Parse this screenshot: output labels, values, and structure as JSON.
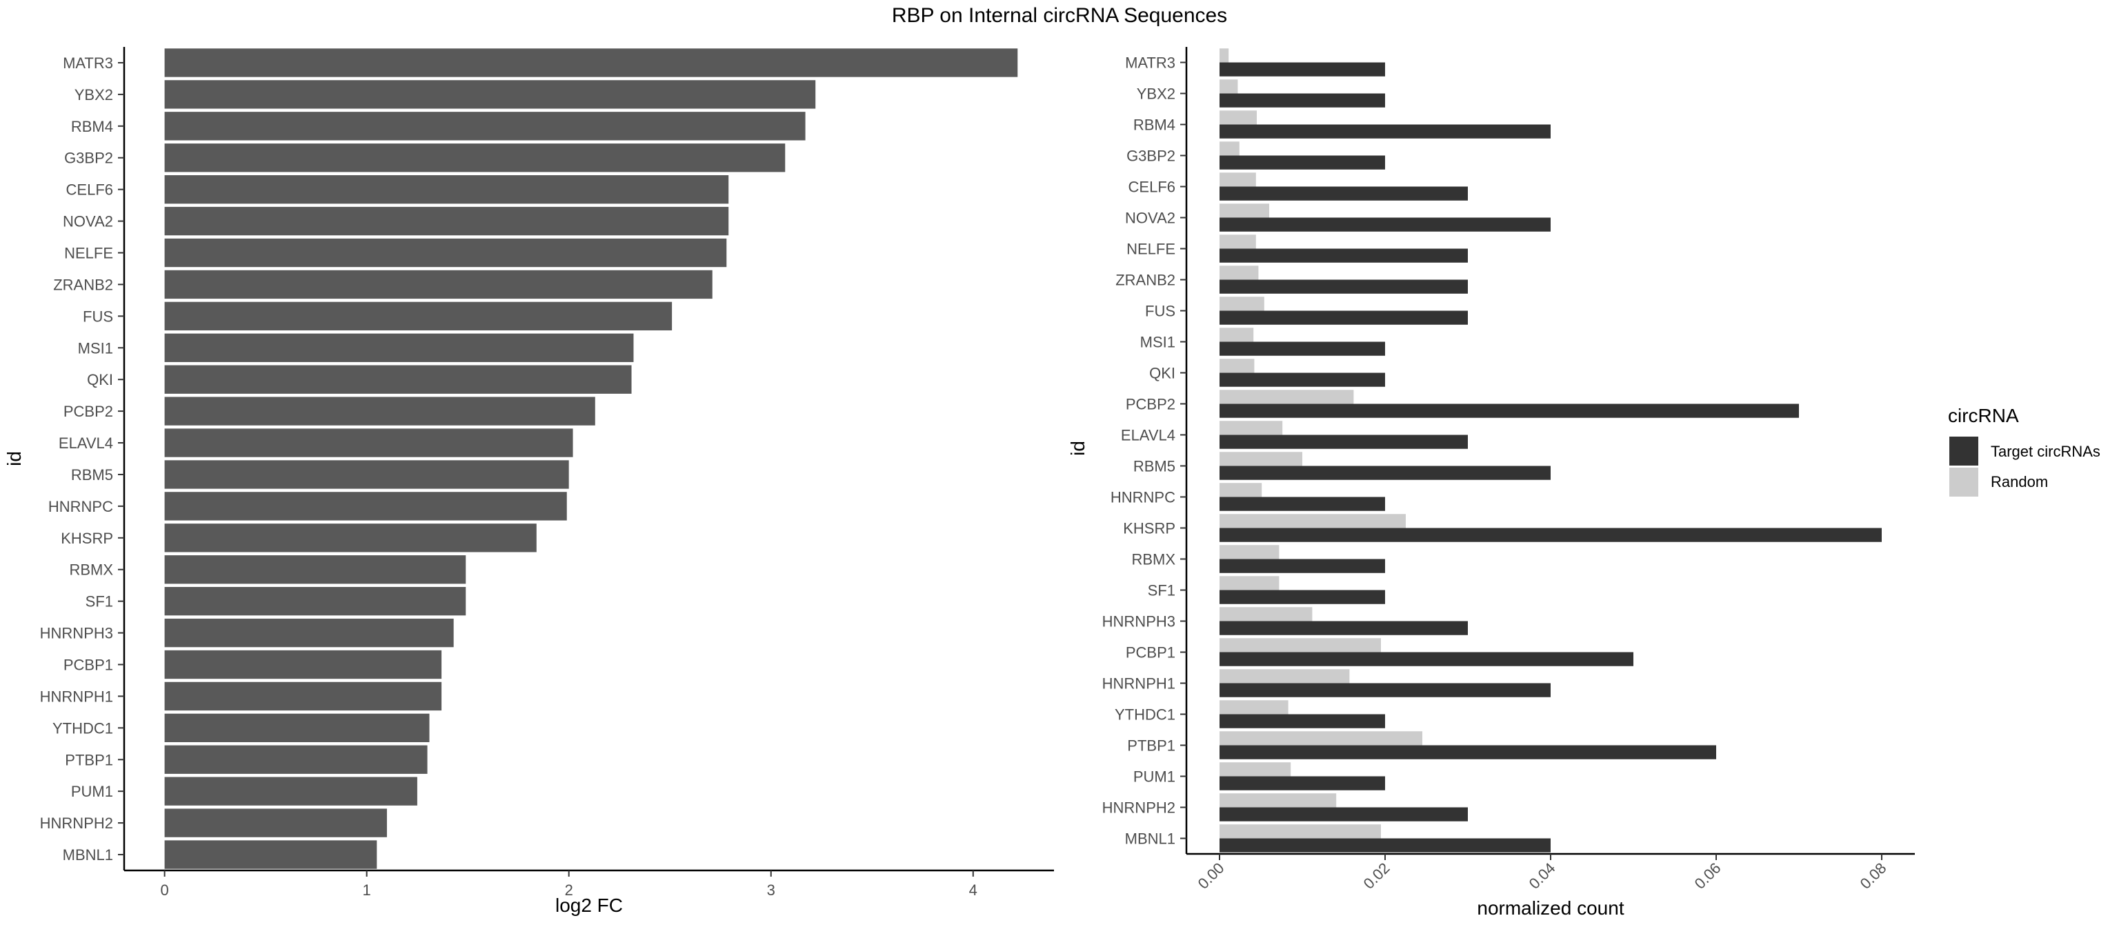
{
  "title": "RBP on Internal circRNA Sequences",
  "chart_data": [
    {
      "type": "bar",
      "orientation": "horizontal",
      "xlabel": "log2 FC",
      "ylabel": "id",
      "xlim": [
        -0.2,
        4.4
      ],
      "xticks": [
        "0",
        "1",
        "2",
        "3",
        "4"
      ],
      "grid": false,
      "bar_color": "#595959",
      "categories": [
        "MATR3",
        "YBX2",
        "RBM4",
        "G3BP2",
        "CELF6",
        "NOVA2",
        "NELFE",
        "ZRANB2",
        "FUS",
        "MSI1",
        "QKI",
        "PCBP2",
        "ELAVL4",
        "RBM5",
        "HNRNPC",
        "KHSRP",
        "RBMX",
        "SF1",
        "HNRNPH3",
        "PCBP1",
        "HNRNPH1",
        "YTHDC1",
        "PTBP1",
        "PUM1",
        "HNRNPH2",
        "MBNL1"
      ],
      "values": [
        4.22,
        3.22,
        3.17,
        3.07,
        2.79,
        2.79,
        2.78,
        2.71,
        2.51,
        2.32,
        2.31,
        2.13,
        2.02,
        2.0,
        1.99,
        1.84,
        1.49,
        1.49,
        1.43,
        1.37,
        1.37,
        1.31,
        1.3,
        1.25,
        1.1,
        1.05
      ]
    },
    {
      "type": "bar",
      "orientation": "horizontal",
      "grouped": true,
      "xlabel": "normalized count",
      "ylabel": "id",
      "xlim": [
        -0.004,
        0.084
      ],
      "xticks": [
        "0.00",
        "0.02",
        "0.04",
        "0.06",
        "0.08"
      ],
      "grid": false,
      "legend_title": "circRNA",
      "legend_position": "right",
      "categories": [
        "MATR3",
        "YBX2",
        "RBM4",
        "G3BP2",
        "CELF6",
        "NOVA2",
        "NELFE",
        "ZRANB2",
        "FUS",
        "MSI1",
        "QKI",
        "PCBP2",
        "ELAVL4",
        "RBM5",
        "HNRNPC",
        "KHSRP",
        "RBMX",
        "SF1",
        "HNRNPH3",
        "PCBP1",
        "HNRNPH1",
        "YTHDC1",
        "PTBP1",
        "PUM1",
        "HNRNPH2",
        "MBNL1"
      ],
      "series": [
        {
          "name": "Target circRNAs",
          "color": "#333333",
          "values": [
            0.02,
            0.02,
            0.04,
            0.02,
            0.03,
            0.04,
            0.03,
            0.03,
            0.03,
            0.02,
            0.02,
            0.07,
            0.03,
            0.04,
            0.02,
            0.08,
            0.02,
            0.02,
            0.03,
            0.05,
            0.04,
            0.02,
            0.06,
            0.02,
            0.03,
            0.04
          ]
        },
        {
          "name": "Random",
          "color": "#cccccc",
          "values": [
            0.0011,
            0.0022,
            0.0045,
            0.0024,
            0.0044,
            0.006,
            0.0044,
            0.0047,
            0.0054,
            0.0041,
            0.0042,
            0.0162,
            0.0076,
            0.01,
            0.0051,
            0.0225,
            0.0072,
            0.0072,
            0.0112,
            0.0195,
            0.0157,
            0.0083,
            0.0245,
            0.0086,
            0.0141,
            0.0195
          ]
        }
      ]
    }
  ]
}
